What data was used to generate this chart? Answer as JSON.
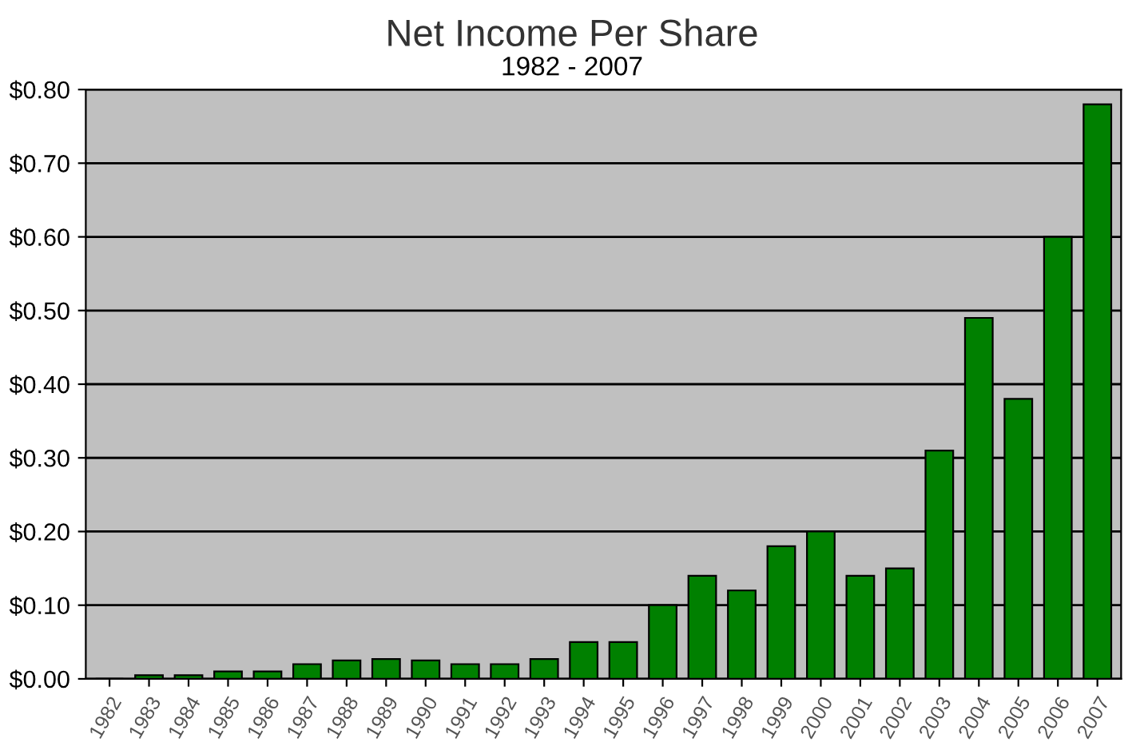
{
  "chart_data": {
    "type": "bar",
    "title": "Net Income Per Share",
    "subtitle": "1982 - 2007",
    "categories": [
      "1982",
      "1983",
      "1984",
      "1985",
      "1986",
      "1987",
      "1988",
      "1989",
      "1990",
      "1991",
      "1992",
      "1993",
      "1994",
      "1995",
      "1996",
      "1997",
      "1998",
      "1999",
      "2000",
      "2001",
      "2002",
      "2003",
      "2004",
      "2005",
      "2006",
      "2007"
    ],
    "values": [
      0,
      0.005,
      0.005,
      0.01,
      0.01,
      0.02,
      0.025,
      0.027,
      0.025,
      0.02,
      0.02,
      0.027,
      0.05,
      0.05,
      0.1,
      0.14,
      0.12,
      0.18,
      0.2,
      0.14,
      0.15,
      0.31,
      0.49,
      0.38,
      0.6,
      0.78
    ],
    "color": "#008000",
    "ylim": [
      0,
      0.8
    ],
    "yticks": [
      {
        "value": 0,
        "label": "$0.00"
      },
      {
        "value": 0.1,
        "label": "$0.10"
      },
      {
        "value": 0.2,
        "label": "$0.20"
      },
      {
        "value": 0.3,
        "label": "$0.30"
      },
      {
        "value": 0.4,
        "label": "$0.40"
      },
      {
        "value": 0.5,
        "label": "$0.50"
      },
      {
        "value": 0.6,
        "label": "$0.60"
      },
      {
        "value": 0.7,
        "label": "$0.70"
      },
      {
        "value": 0.8,
        "label": "$0.80"
      }
    ],
    "grid": "y",
    "legend": false
  }
}
